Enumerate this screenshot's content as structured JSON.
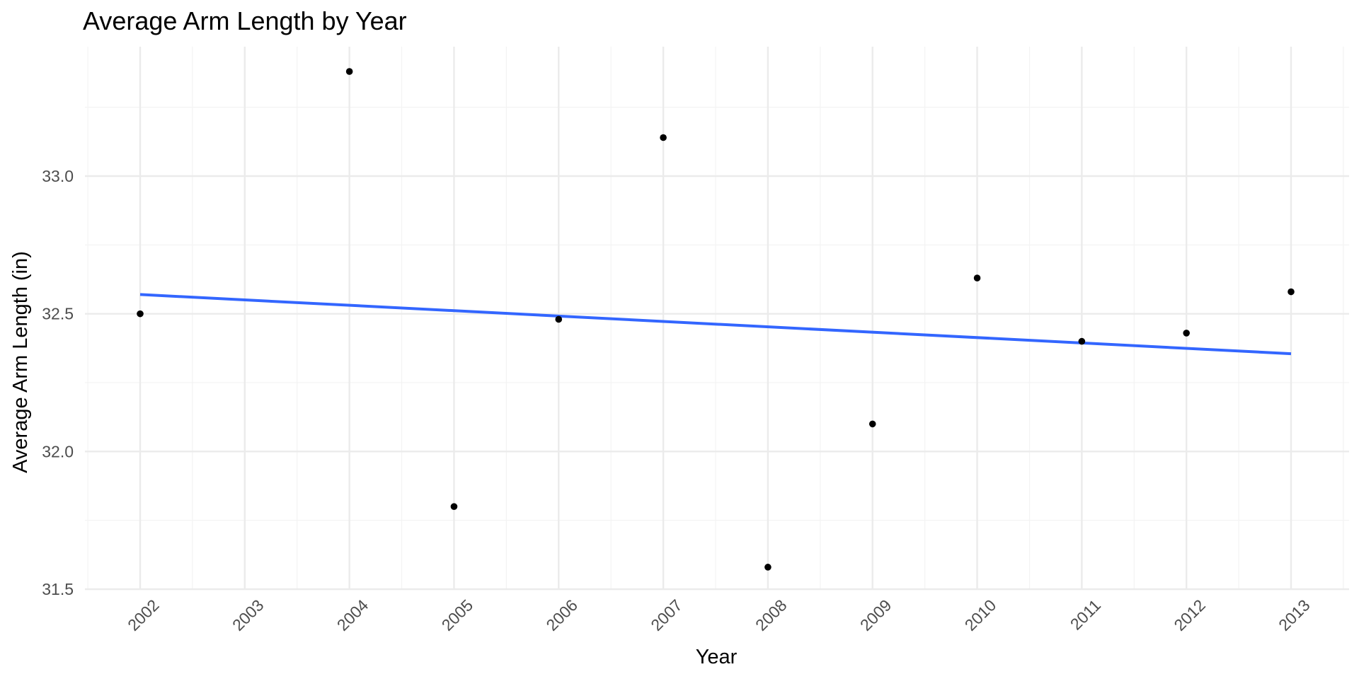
{
  "chart_data": {
    "type": "scatter",
    "title": "Average Arm Length by Year",
    "xlabel": "Year",
    "ylabel": "Average Arm Length (in)",
    "x_ticks": [
      "2002",
      "2003",
      "2004",
      "2005",
      "2006",
      "2007",
      "2008",
      "2009",
      "2010",
      "2011",
      "2012",
      "2013"
    ],
    "y_ticks": [
      "31.5",
      "32.0",
      "32.5",
      "33.0"
    ],
    "xlim": [
      2001.5,
      2013.5
    ],
    "ylim": [
      31.5,
      33.38
    ],
    "grid": true,
    "legend": "none",
    "points": [
      {
        "x": 2002,
        "y": 32.5
      },
      {
        "x": 2004,
        "y": 33.38
      },
      {
        "x": 2005,
        "y": 31.8
      },
      {
        "x": 2006,
        "y": 32.48
      },
      {
        "x": 2007,
        "y": 33.14
      },
      {
        "x": 2008,
        "y": 31.58
      },
      {
        "x": 2009,
        "y": 32.1
      },
      {
        "x": 2010,
        "y": 32.63
      },
      {
        "x": 2011,
        "y": 32.4
      },
      {
        "x": 2012,
        "y": 32.43
      },
      {
        "x": 2013,
        "y": 32.58
      }
    ],
    "trend_line": {
      "method": "linear",
      "x": [
        2002,
        2013
      ],
      "y": [
        32.57,
        32.355
      ]
    },
    "colors": {
      "points": "#000000",
      "trend_line": "#3366ff",
      "grid": "#ebebeb"
    }
  }
}
